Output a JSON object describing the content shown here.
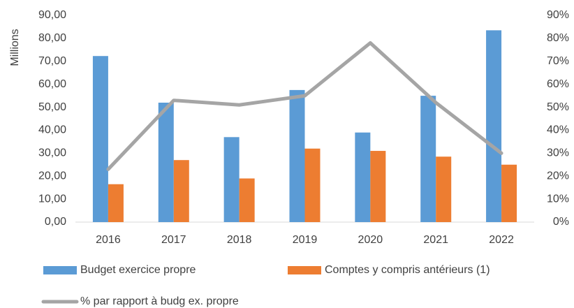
{
  "chart_data": {
    "type": "bar",
    "y_label": "Millions",
    "categories": [
      "2016",
      "2017",
      "2018",
      "2019",
      "2020",
      "2021",
      "2022"
    ],
    "series": [
      {
        "name": "Budget exercice propre",
        "color": "#5b9bd5",
        "type": "bar",
        "values": [
          72.3,
          52,
          37,
          57.5,
          39,
          55,
          83.5
        ]
      },
      {
        "name": "Comptes y compris antérieurs (1)",
        "color": "#ed7d31",
        "type": "bar",
        "values": [
          16.5,
          27,
          19,
          32,
          31,
          28.5,
          25
        ]
      },
      {
        "name": "% par rapport à budg ex. propre",
        "color": "#a5a5a5",
        "type": "line",
        "axis": "y2",
        "values": [
          23,
          53,
          51,
          55,
          78,
          52,
          30
        ]
      }
    ],
    "ylim": [
      0,
      90
    ],
    "yticks": [
      {
        "value": 0,
        "label": "0,00"
      },
      {
        "value": 10,
        "label": "10,00"
      },
      {
        "value": 20,
        "label": "20,00"
      },
      {
        "value": 30,
        "label": "30,00"
      },
      {
        "value": 40,
        "label": "40,00"
      },
      {
        "value": 50,
        "label": "50,00"
      },
      {
        "value": 60,
        "label": "60,00"
      },
      {
        "value": 70,
        "label": "70,00"
      },
      {
        "value": 80,
        "label": "80,00"
      },
      {
        "value": 90,
        "label": "90,00"
      }
    ],
    "y2lim": [
      0,
      90
    ],
    "y2ticks": [
      {
        "value": 0,
        "label": "0%"
      },
      {
        "value": 10,
        "label": "10%"
      },
      {
        "value": 20,
        "label": "20%"
      },
      {
        "value": 30,
        "label": "30%"
      },
      {
        "value": 40,
        "label": "40%"
      },
      {
        "value": 50,
        "label": "50%"
      },
      {
        "value": 60,
        "label": "60%"
      },
      {
        "value": 70,
        "label": "70%"
      },
      {
        "value": 80,
        "label": "80%"
      },
      {
        "value": 90,
        "label": "90%"
      }
    ],
    "grid": false
  }
}
